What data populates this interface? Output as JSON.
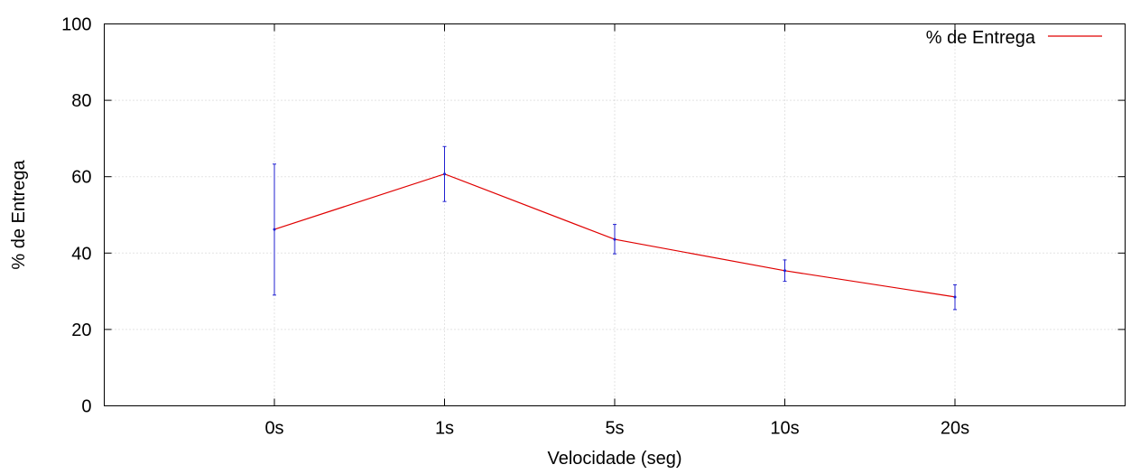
{
  "chart_data": {
    "type": "line",
    "title": "",
    "xlabel": "Velocidade (seg)",
    "ylabel": "% de Entrega",
    "categories": [
      "0s",
      "1s",
      "5s",
      "10s",
      "20s"
    ],
    "ylim": [
      0,
      100
    ],
    "yticks": [
      0,
      20,
      40,
      60,
      80,
      100
    ],
    "grid": true,
    "legend_position": "top-right",
    "series": [
      {
        "name": "% de Entrega",
        "values": [
          46.2,
          60.7,
          43.6,
          35.4,
          28.5
        ],
        "error_low": [
          29.0,
          53.5,
          39.8,
          32.6,
          25.2
        ],
        "error_high": [
          63.3,
          67.9,
          47.5,
          38.2,
          31.7
        ],
        "line_color": "#e00000",
        "errorbar_color": "#2020d0"
      }
    ]
  }
}
